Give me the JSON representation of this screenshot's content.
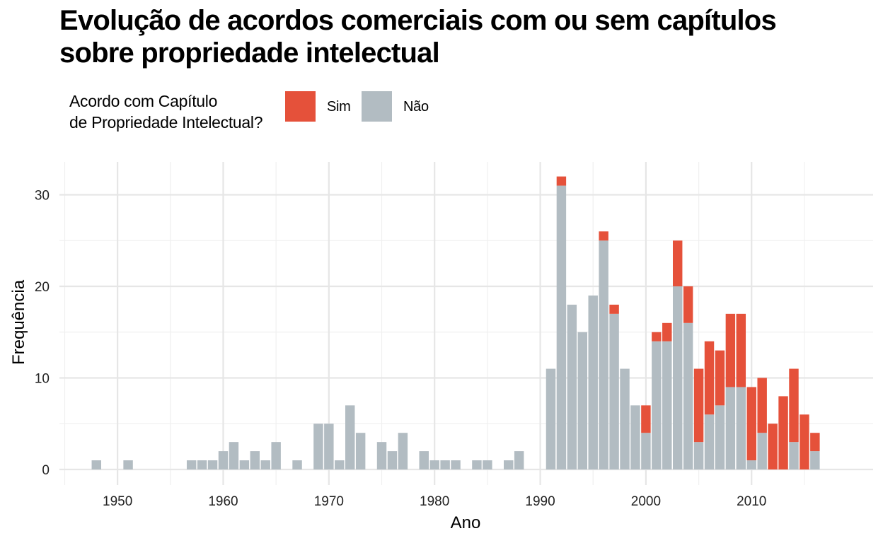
{
  "title": "Evolução de acordos comerciais com ou sem capítulos sobre propriedade intelectual",
  "legend": {
    "title_line1": "Acordo com Capítulo",
    "title_line2": "de Propriedade Intelectual?",
    "items": [
      {
        "label": "Sim",
        "color": "#E5513A"
      },
      {
        "label": "Não",
        "color": "#B2BCC2"
      }
    ]
  },
  "chart_data": {
    "type": "bar",
    "stacked": true,
    "title": "Evolução de acordos comerciais com ou sem capítulos sobre propriedade intelectual",
    "xlabel": "Ano",
    "ylabel": "Frequência",
    "xlim": [
      1944.5,
      2021.5
    ],
    "ylim": [
      0,
      33.5
    ],
    "x_ticks": [
      1950,
      1960,
      1970,
      1980,
      1990,
      2000,
      2010
    ],
    "y_ticks": [
      0,
      10,
      20,
      30
    ],
    "grid": true,
    "legend_position": "top-left",
    "categories": [
      1948,
      1951,
      1957,
      1958,
      1959,
      1960,
      1961,
      1962,
      1963,
      1964,
      1965,
      1967,
      1969,
      1970,
      1971,
      1972,
      1973,
      1975,
      1976,
      1977,
      1979,
      1980,
      1981,
      1982,
      1984,
      1985,
      1987,
      1988,
      1991,
      1992,
      1993,
      1994,
      1995,
      1996,
      1997,
      1998,
      1999,
      2000,
      2001,
      2002,
      2003,
      2004,
      2005,
      2006,
      2007,
      2008,
      2009,
      2010,
      2011,
      2012,
      2013,
      2014,
      2015,
      2016
    ],
    "series": [
      {
        "name": "Não",
        "color": "#B2BCC2",
        "values": [
          1,
          1,
          1,
          1,
          1,
          2,
          3,
          1,
          2,
          1,
          3,
          1,
          5,
          5,
          1,
          7,
          4,
          3,
          2,
          4,
          2,
          1,
          1,
          1,
          1,
          1,
          1,
          2,
          11,
          31,
          18,
          15,
          19,
          25,
          17,
          11,
          7,
          4,
          14,
          14,
          20,
          16,
          3,
          6,
          7,
          9,
          9,
          1,
          4,
          0,
          0,
          3,
          0,
          2
        ]
      },
      {
        "name": "Sim",
        "color": "#E5513A",
        "values": [
          0,
          0,
          0,
          0,
          0,
          0,
          0,
          0,
          0,
          0,
          0,
          0,
          0,
          0,
          0,
          0,
          0,
          0,
          0,
          0,
          0,
          0,
          0,
          0,
          0,
          0,
          0,
          0,
          0,
          1,
          0,
          0,
          0,
          1,
          1,
          0,
          0,
          3,
          1,
          2,
          5,
          4,
          8,
          8,
          6,
          8,
          8,
          8,
          6,
          5,
          8,
          8,
          6,
          2
        ]
      }
    ]
  }
}
